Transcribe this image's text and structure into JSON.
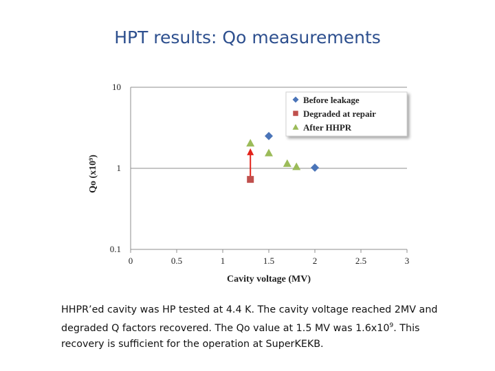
{
  "slide": {
    "title": "HPT results: Qo measurements",
    "caption": {
      "before_exponent": "HHPR’ed cavity  was HP tested at 4.4 K.  The cavity voltage reached 2MV and degraded Q factors recovered. The Qo value at 1.5 MV was 1.6x10",
      "exponent": "9",
      "after_exponent": ". This recovery is sufficient for the operation at SuperKEKB."
    }
  },
  "chart_data": {
    "type": "scatter",
    "xlabel": "Cavity voltage (MV)",
    "ylabel": "Qo (x10⁹)",
    "xlim": [
      0,
      3
    ],
    "ylim": [
      0.1,
      10
    ],
    "yscale": "log",
    "xticks": [
      "0",
      "0.5",
      "1",
      "1.5",
      "2",
      "2.5",
      "3"
    ],
    "yticks": [
      "10",
      "1",
      "0.1"
    ],
    "grid": "horizontal",
    "legend_position": "top-right",
    "series": [
      {
        "name": "Before leakage",
        "marker": "diamond",
        "color": "#4a74b8",
        "points": [
          [
            1.5,
            2.5
          ],
          [
            2.0,
            1.02
          ]
        ]
      },
      {
        "name": "Degraded at repair",
        "marker": "square",
        "color": "#c0504d",
        "points": [
          [
            1.3,
            0.73
          ]
        ]
      },
      {
        "name": "After HHPR",
        "marker": "triangle",
        "color": "#9bbb59",
        "points": [
          [
            1.3,
            2.05
          ],
          [
            1.5,
            1.55
          ],
          [
            1.7,
            1.15
          ],
          [
            1.8,
            1.05
          ]
        ]
      }
    ],
    "annotation": {
      "type": "arrow",
      "color": "#e2231a",
      "from": [
        1.3,
        0.78
      ],
      "to": [
        1.3,
        1.6
      ]
    }
  }
}
